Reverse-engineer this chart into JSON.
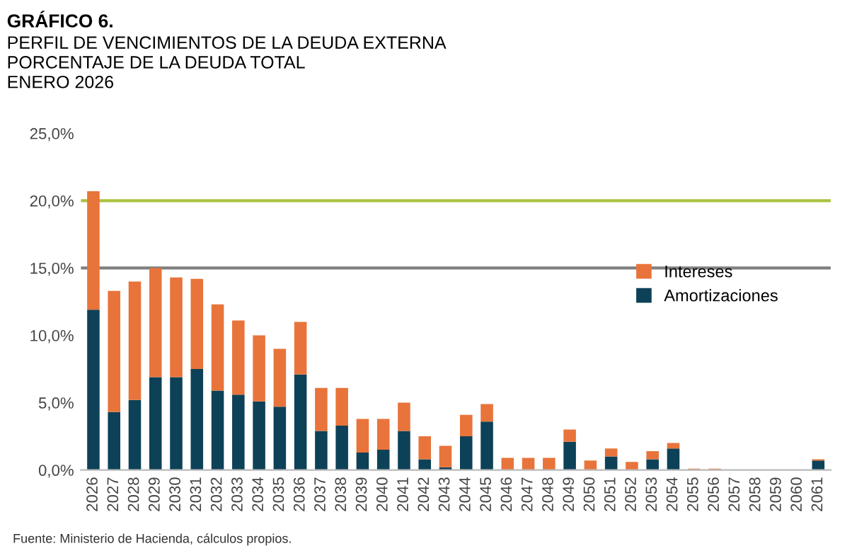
{
  "chart_data": {
    "type": "bar",
    "stacked": true,
    "title": "GRÁFICO 6.",
    "subtitle": "PERFIL DE VENCIMIENTOS DE LA DEUDA EXTERNA\nPORCENTAJE DE LA DEUDA TOTAL\nENERO 2026",
    "categories": [
      "2026",
      "2027",
      "2028",
      "2029",
      "2030",
      "2031",
      "2032",
      "2033",
      "2034",
      "2035",
      "2036",
      "2037",
      "2038",
      "2039",
      "2040",
      "2041",
      "2042",
      "2043",
      "2044",
      "2045",
      "2046",
      "2047",
      "2048",
      "2049",
      "2050",
      "2051",
      "2052",
      "2053",
      "2054",
      "2055",
      "2056",
      "2057",
      "2058",
      "2059",
      "2060",
      "2061"
    ],
    "series": [
      {
        "name": "Amortizaciones",
        "color": "#0d4157",
        "values": [
          11.9,
          4.3,
          5.2,
          6.9,
          6.9,
          7.5,
          5.9,
          5.6,
          5.1,
          4.7,
          7.1,
          2.9,
          3.3,
          1.3,
          1.5,
          2.9,
          0.8,
          0.2,
          2.5,
          3.6,
          0,
          0,
          0,
          2.1,
          0,
          1.0,
          0,
          0.8,
          1.6,
          0,
          0,
          0,
          0,
          0,
          0,
          0.7
        ]
      },
      {
        "name": "Intereses",
        "color": "#e8743b",
        "values": [
          8.8,
          9.0,
          8.8,
          8.1,
          7.4,
          6.7,
          6.4,
          5.5,
          4.9,
          4.3,
          3.9,
          3.2,
          2.8,
          2.5,
          2.3,
          2.1,
          1.7,
          1.6,
          1.6,
          1.3,
          0.9,
          0.9,
          0.9,
          0.9,
          0.7,
          0.6,
          0.6,
          0.6,
          0.4,
          0.1,
          0.1,
          0,
          0,
          0,
          0,
          0.1
        ]
      }
    ],
    "ylim": [
      0,
      25
    ],
    "yticks": [
      {
        "value": 0,
        "label": "0,0%"
      },
      {
        "value": 5,
        "label": "5,0%"
      },
      {
        "value": 10,
        "label": "10,0%"
      },
      {
        "value": 15,
        "label": "15,0%"
      },
      {
        "value": 20,
        "label": "20,0%"
      },
      {
        "value": 25,
        "label": "25,0%"
      }
    ],
    "ref_lines": [
      {
        "axis": "y",
        "value": 20,
        "color": "#a9c23f"
      },
      {
        "axis": "y",
        "value": 15,
        "color": "#7f7f7f"
      }
    ],
    "grid": false,
    "legend": "right",
    "annotations": [
      "Fuente: Ministerio de Hacienda, cálculos propios."
    ]
  }
}
